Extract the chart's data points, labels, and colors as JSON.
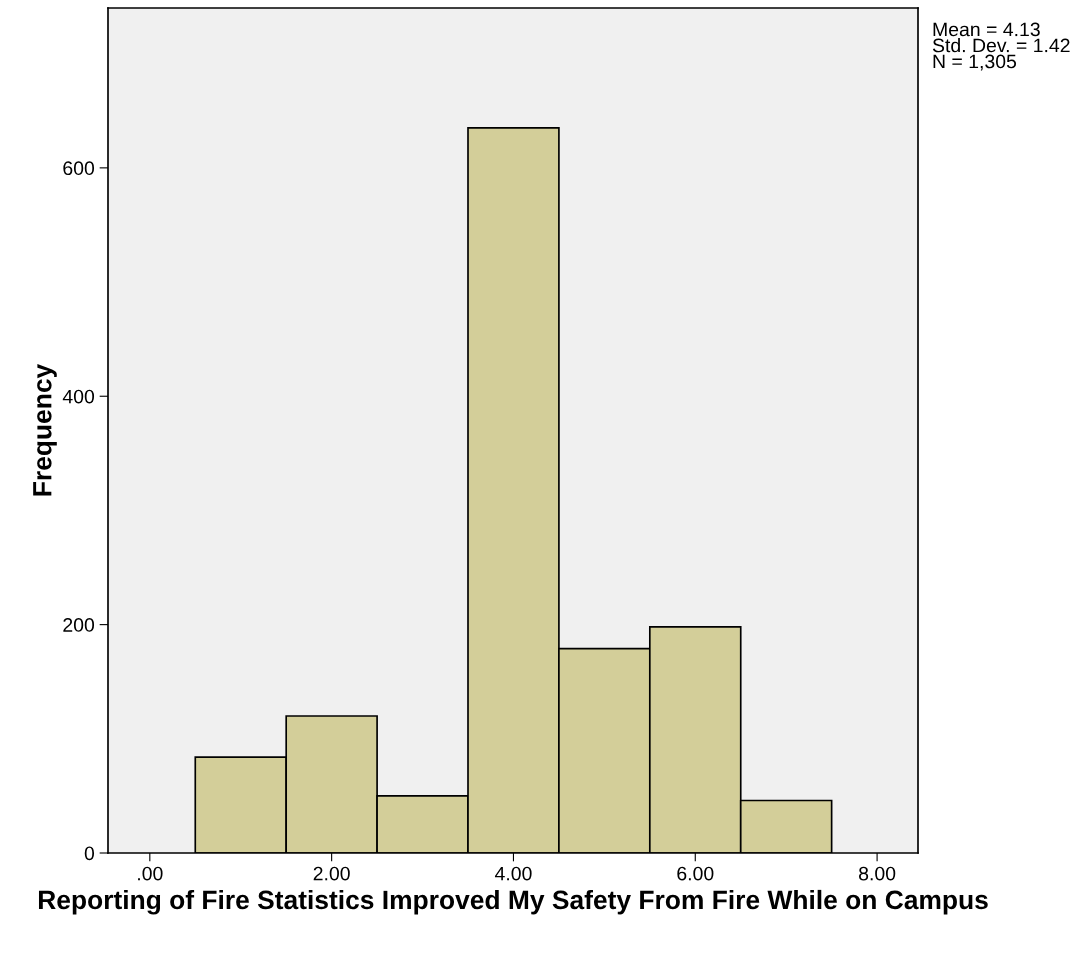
{
  "chart_data": {
    "type": "histogram",
    "xlabel": "Reporting of Fire Statistics Improved My Safety From Fire While on Campus",
    "ylabel": "Frequency",
    "bins": [
      0.5,
      1.5,
      2.5,
      3.5,
      4.5,
      5.5,
      6.5,
      7.5
    ],
    "values": [
      84,
      120,
      50,
      635,
      179,
      198,
      46
    ],
    "color": "#d3ce99",
    "xlim": [
      -0.46,
      8.45
    ],
    "ylim": [
      0,
      740
    ],
    "xticks": [
      {
        "value": 0,
        "label": ".00"
      },
      {
        "value": 2,
        "label": "2.00"
      },
      {
        "value": 4,
        "label": "4.00"
      },
      {
        "value": 6,
        "label": "6.00"
      },
      {
        "value": 8,
        "label": "8.00"
      }
    ],
    "yticks": [
      0,
      200,
      400,
      600
    ],
    "grid": false,
    "annotations": [
      "Mean = 4.13\nStd. Dev. = 1.42\nN = 1,305"
    ]
  }
}
